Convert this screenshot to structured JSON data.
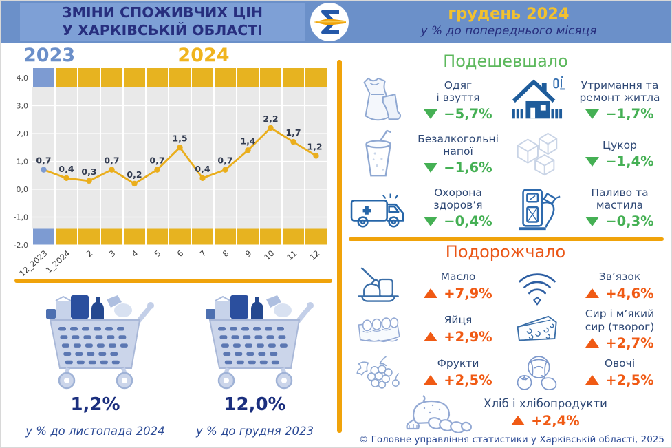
{
  "header": {
    "title_line1": "ЗМІНИ СПОЖИВЧИХ ЦІН",
    "title_line2": "У ХАРКІВСЬКІЙ ОБЛАСТІ",
    "logo": "statistics-sigma-logo",
    "period": "грудень 2024",
    "subtitle": "у % до попереднього місяця"
  },
  "chart_data": {
    "type": "line",
    "title": "Зміни споживчих цін, у % до попереднього місяця",
    "year_left": "2023",
    "year_right": "2024",
    "x": [
      "12_2023",
      "1_2024",
      "2",
      "3",
      "4",
      "5",
      "6",
      "7",
      "8",
      "9",
      "10",
      "11",
      "12"
    ],
    "values": [
      0.7,
      0.4,
      0.3,
      0.7,
      0.2,
      0.7,
      1.5,
      0.4,
      0.7,
      1.4,
      2.2,
      1.7,
      1.2
    ],
    "point_labels": [
      "0,7",
      "0,4",
      "0,3",
      "0,7",
      "0,2",
      "0,7",
      "1,5",
      "0,4",
      "0,7",
      "1,4",
      "2,2",
      "1,7",
      "1,2"
    ],
    "yticks": [
      "4,0",
      "3,0",
      "2,0",
      "1,0",
      "0,0",
      "-1,0",
      "-2,0"
    ],
    "ylim": [
      -2.0,
      4.5
    ],
    "grid": true,
    "legend": "none",
    "colors": {
      "prev_year": "#7D9BD2",
      "cur_year": "#E7B320",
      "line": "#EAAE1C",
      "plot_bg": "#E9E9E9"
    }
  },
  "summary": {
    "mom": {
      "value": "1,2%",
      "caption": "у % до листопада 2024",
      "icon": "grocery-cart-icon"
    },
    "yoy": {
      "value": "12,0%",
      "caption": "у % до грудня 2023",
      "icon": "grocery-cart-icon"
    }
  },
  "cheaper": {
    "title": "Подешевшало",
    "direction": "down",
    "items": [
      {
        "name": "Одяг\nі взуття",
        "value": "−5,7%",
        "icon": "clothing-icon"
      },
      {
        "name": "Утримання та\nремонт житла",
        "value": "−1,7%",
        "icon": "housing-icon"
      },
      {
        "name": "Безалкогольні\nнапої",
        "value": "−1,6%",
        "icon": "beverage-icon"
      },
      {
        "name": "Цукор",
        "value": "−1,4%",
        "icon": "sugar-icon"
      },
      {
        "name": "Охорона\nздоров’я",
        "value": "−0,4%",
        "icon": "healthcare-icon"
      },
      {
        "name": "Паливо та\nмастила",
        "value": "−0,3%",
        "icon": "fuel-icon"
      }
    ]
  },
  "expensive": {
    "title": "Подорожчало",
    "direction": "up",
    "items": [
      {
        "name": "Масло",
        "value": "+7,9%",
        "icon": "butter-icon"
      },
      {
        "name": "Зв’язок",
        "value": "+4,6%",
        "icon": "communication-icon"
      },
      {
        "name": "Яйця",
        "value": "+2,9%",
        "icon": "eggs-icon"
      },
      {
        "name": "Сир і м’який\nсир (творог)",
        "value": "+2,7%",
        "icon": "cheese-icon"
      },
      {
        "name": "Фрукти",
        "value": "+2,5%",
        "icon": "fruits-icon"
      },
      {
        "name": "Овочі",
        "value": "+2,5%",
        "icon": "vegetables-icon"
      },
      {
        "name": "Хліб і хлібопродукти",
        "value": "+2,4%",
        "icon": "bread-icon"
      }
    ]
  },
  "footer": {
    "text": "© Головне управління статистики у Харківській області, 2025"
  },
  "colors": {
    "header_bg": "#6B90C9",
    "header_box": "#7EA0D6",
    "navy": "#272E7E",
    "accent_yellow": "#F0A30A",
    "green": "#45B054",
    "orange_red": "#F05A14",
    "year_prev": "#6B8FC9",
    "year_cur": "#F0B41E"
  }
}
